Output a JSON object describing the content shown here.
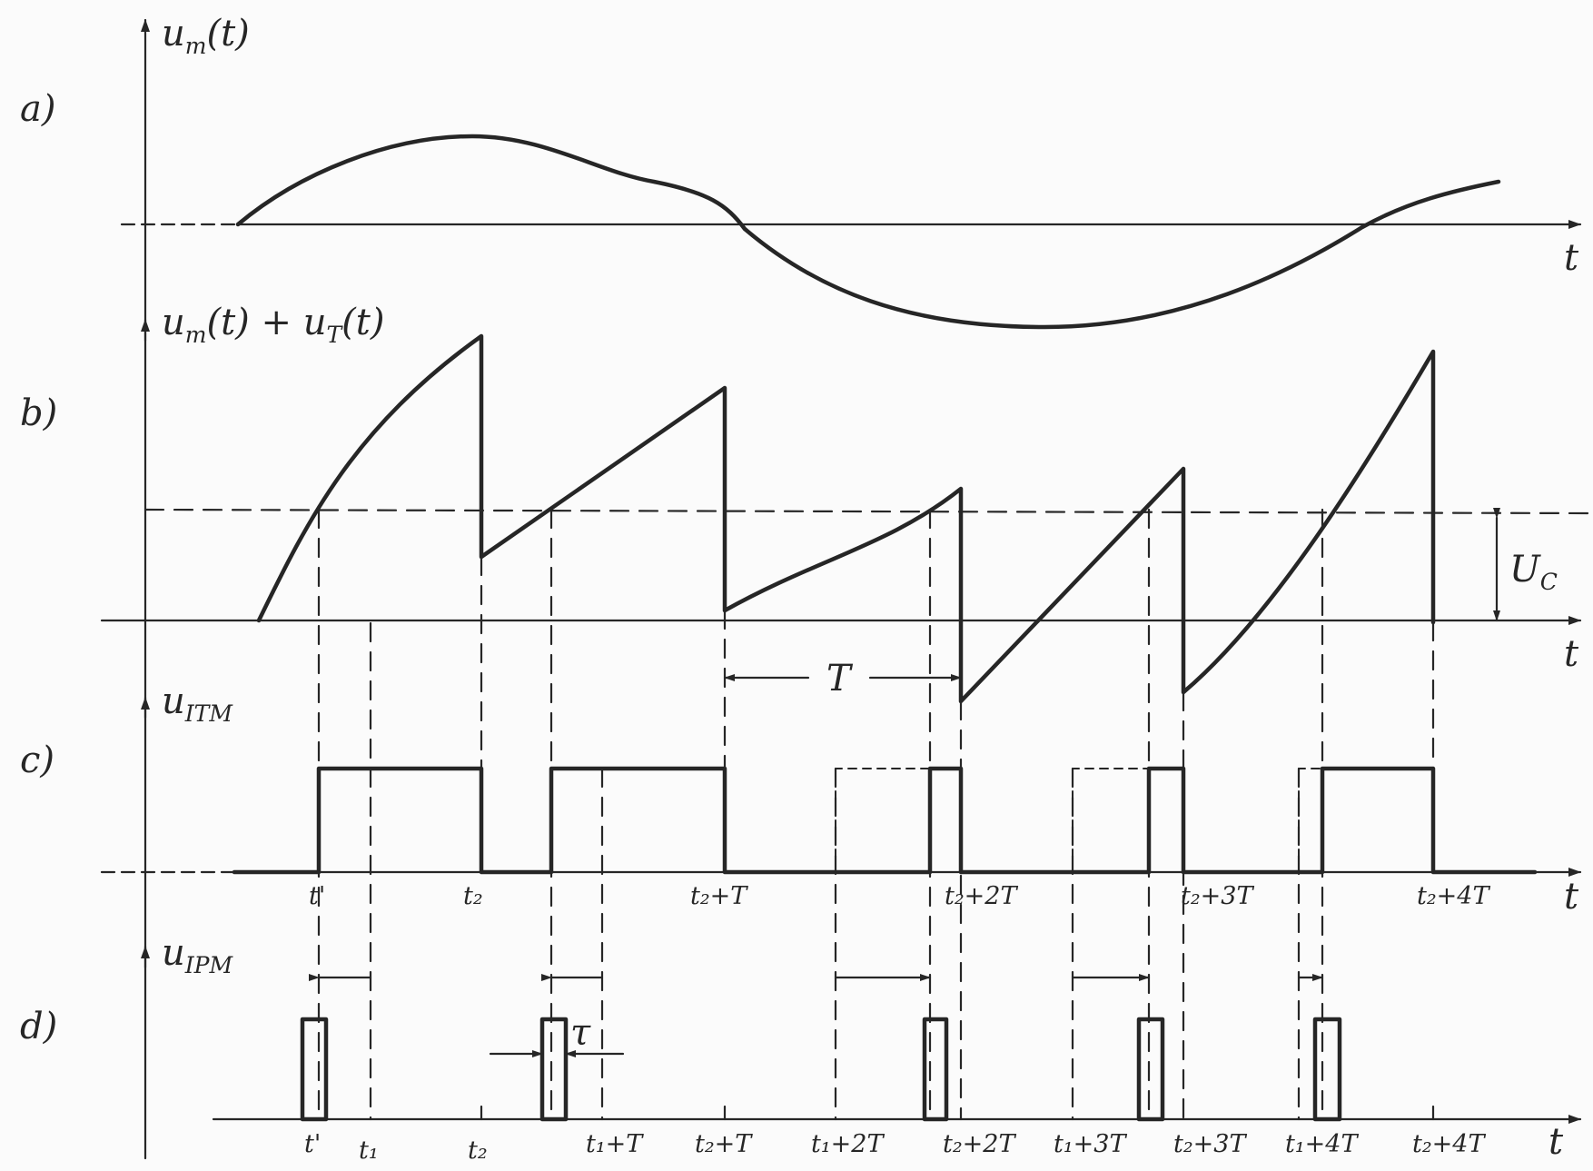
{
  "panels": {
    "a": {
      "tag": "a)",
      "y_label": "u",
      "y_sub": "m",
      "y_tail": "(t)",
      "x_label": "t"
    },
    "b": {
      "tag": "b)",
      "y_label": "u",
      "y_sub1": "m",
      "y_mid": "(t) + u",
      "y_sub2": "T",
      "y_tail": "(t)",
      "x_label": "t",
      "threshold_label": "U",
      "threshold_sub": "C",
      "period_label": "T"
    },
    "c": {
      "tag": "c)",
      "y_label": "u",
      "y_sub": "ITM",
      "x_label": "t"
    },
    "d": {
      "tag": "d)",
      "y_label": "u",
      "y_sub": "IPM",
      "x_label": "t",
      "tau_label": "τ"
    }
  },
  "ticks_c": [
    {
      "id": "t-prime",
      "text": "t'"
    },
    {
      "id": "t2",
      "text": "t₂"
    },
    {
      "id": "t2-plus-T",
      "text": "t₂+T"
    },
    {
      "id": "t2-plus-2T",
      "text": "t₂+2T"
    },
    {
      "id": "t2-plus-3T",
      "text": "t₂+3T"
    },
    {
      "id": "t2-plus-4T",
      "text": "t₂+4T"
    }
  ],
  "ticks_d": [
    {
      "id": "t-prime",
      "text": "t'"
    },
    {
      "id": "t1",
      "text": "t₁"
    },
    {
      "id": "t2",
      "text": "t₂"
    },
    {
      "id": "t1-plus-T",
      "text": "t₁+T"
    },
    {
      "id": "t2-plus-T",
      "text": "t₂+T"
    },
    {
      "id": "t1-plus-2T",
      "text": "t₁+2T"
    },
    {
      "id": "t2-plus-2T",
      "text": "t₂+2T"
    },
    {
      "id": "t1-plus-3T",
      "text": "t₁+3T"
    },
    {
      "id": "t2-plus-3T",
      "text": "t₂+3T"
    },
    {
      "id": "t1-plus-4T",
      "text": "t₁+4T"
    },
    {
      "id": "t2-plus-4T",
      "text": "t₂+4T"
    }
  ]
}
